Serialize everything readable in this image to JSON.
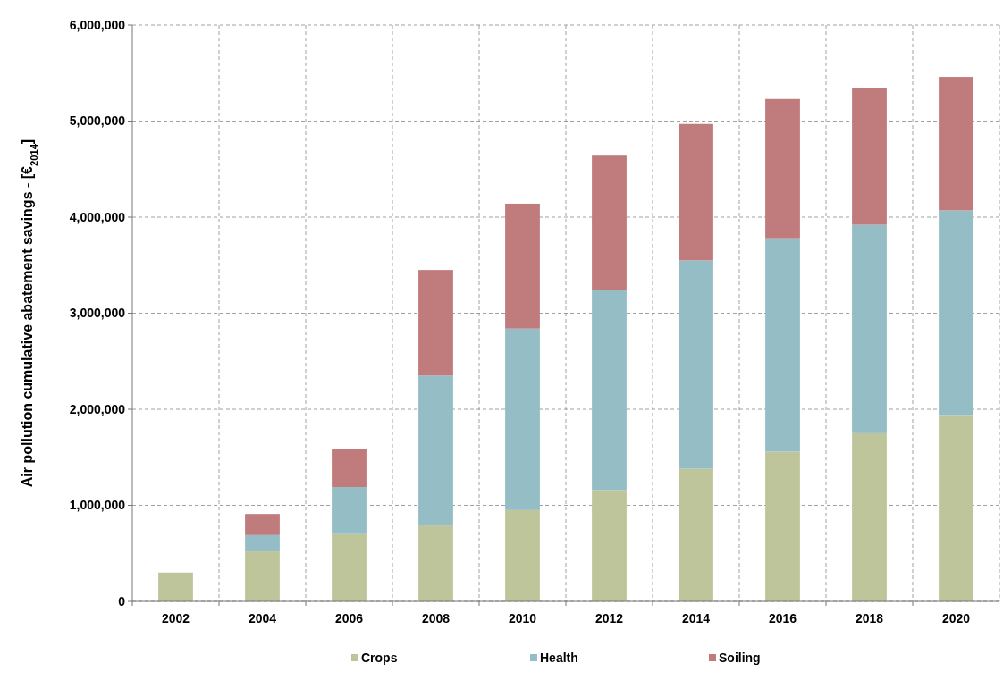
{
  "chart_data": {
    "type": "bar",
    "stacked": true,
    "ylabel": "Air pollution cumulative abatement savings - [€$_{2014}$]",
    "categories": [
      "2002",
      "2004",
      "2006",
      "2008",
      "2010",
      "2012",
      "2014",
      "2016",
      "2018",
      "2020"
    ],
    "series": [
      {
        "name": "Crops",
        "color": "#bec59b",
        "values": [
          300000,
          520000,
          700000,
          790000,
          950000,
          1160000,
          1380000,
          1560000,
          1750000,
          1940000
        ]
      },
      {
        "name": "Health",
        "color": "#94bdc6",
        "values": [
          0,
          170000,
          490000,
          1560000,
          1890000,
          2080000,
          2170000,
          2220000,
          2170000,
          2130000
        ]
      },
      {
        "name": "Soiling",
        "color": "#c07b7d",
        "values": [
          0,
          220000,
          400000,
          1100000,
          1300000,
          1400000,
          1420000,
          1450000,
          1420000,
          1390000
        ]
      }
    ],
    "ylim": [
      0,
      6000000
    ],
    "yticks": [
      0,
      {
        "value": 1000000,
        "label": "1,000,000"
      },
      {
        "value": 2000000,
        "label": "2,000,000"
      },
      {
        "value": 3000000,
        "label": "3,000,000"
      },
      {
        "value": 4000000,
        "label": "4,000,000"
      },
      {
        "value": 5000000,
        "label": "5,000,000"
      },
      {
        "value": 6000000,
        "label": "6,000,000"
      }
    ],
    "grid": true,
    "legend": "bottom"
  }
}
